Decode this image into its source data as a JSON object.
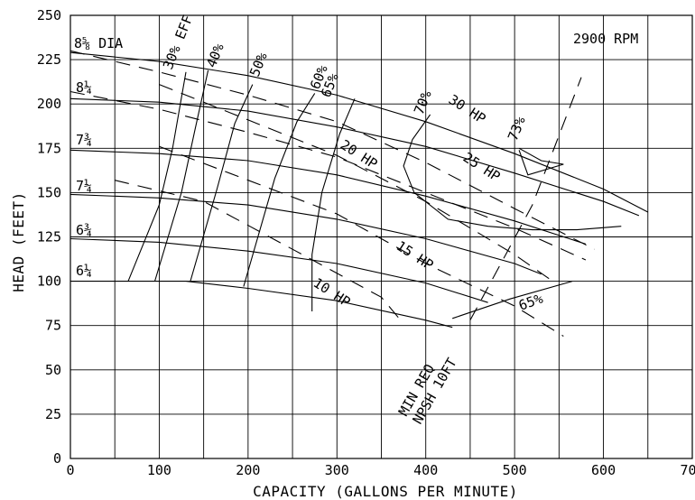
{
  "chart_data": {
    "type": "line",
    "title": "",
    "xlabel": "CAPACITY (GALLONS PER MINUTE)",
    "ylabel": "HEAD (FEET)",
    "xlim": [
      0,
      700
    ],
    "ylim": [
      0,
      250
    ],
    "x_ticks": [
      "0",
      "100",
      "200",
      "300",
      "400",
      "500",
      "600",
      "700"
    ],
    "y_ticks": [
      "0",
      "25",
      "50",
      "75",
      "100",
      "125",
      "150",
      "175",
      "200",
      "225",
      "250"
    ],
    "grid": true,
    "speed_label": "2900 RPM",
    "head_curves": [
      {
        "label": "8⅝ DIA",
        "points": [
          [
            0,
            229
          ],
          [
            100,
            224
          ],
          [
            200,
            216
          ],
          [
            300,
            205
          ],
          [
            400,
            190
          ],
          [
            500,
            172
          ],
          [
            600,
            152
          ],
          [
            650,
            139
          ]
        ]
      },
      {
        "label": "8¼",
        "points": [
          [
            0,
            203
          ],
          [
            100,
            201
          ],
          [
            200,
            196
          ],
          [
            300,
            187
          ],
          [
            400,
            176
          ],
          [
            500,
            161
          ],
          [
            600,
            145
          ],
          [
            640,
            137
          ]
        ]
      },
      {
        "label": "7¾",
        "points": [
          [
            0,
            174
          ],
          [
            100,
            172
          ],
          [
            200,
            168
          ],
          [
            300,
            160
          ],
          [
            400,
            148
          ],
          [
            500,
            134
          ],
          [
            580,
            121
          ]
        ]
      },
      {
        "label": "7¼",
        "points": [
          [
            0,
            149
          ],
          [
            100,
            147
          ],
          [
            200,
            143
          ],
          [
            300,
            135
          ],
          [
            400,
            124
          ],
          [
            500,
            110
          ],
          [
            530,
            104
          ]
        ]
      },
      {
        "label": "6¾",
        "points": [
          [
            0,
            124
          ],
          [
            100,
            122
          ],
          [
            200,
            117
          ],
          [
            300,
            110
          ],
          [
            400,
            99
          ],
          [
            470,
            88
          ]
        ]
      },
      {
        "label": "6¼",
        "points": [
          [
            0,
            100
          ],
          [
            130,
            100
          ],
          [
            200,
            96
          ],
          [
            300,
            89
          ],
          [
            400,
            78
          ],
          [
            430,
            74
          ]
        ]
      }
    ],
    "efficiency_curves": [
      {
        "label": "30% EFF",
        "points": [
          [
            65,
            100
          ],
          [
            100,
            143
          ],
          [
            115,
            175
          ],
          [
            130,
            218
          ]
        ]
      },
      {
        "label": "40%",
        "points": [
          [
            95,
            100
          ],
          [
            125,
            150
          ],
          [
            140,
            185
          ],
          [
            155,
            219
          ]
        ]
      },
      {
        "label": "50%",
        "points": [
          [
            135,
            100
          ],
          [
            165,
            152
          ],
          [
            185,
            189
          ],
          [
            205,
            211
          ]
        ]
      },
      {
        "label": "60%",
        "points": [
          [
            195,
            97
          ],
          [
            230,
            158
          ],
          [
            255,
            190
          ],
          [
            275,
            206
          ]
        ]
      },
      {
        "label": "65%",
        "points": [
          [
            272,
            83
          ],
          [
            272,
            115
          ],
          [
            283,
            150
          ],
          [
            303,
            183
          ],
          [
            320,
            203
          ]
        ]
      },
      {
        "label": "65%",
        "points": [
          [
            430,
            79
          ],
          [
            495,
            90
          ],
          [
            565,
            100
          ]
        ]
      },
      {
        "label": "70%",
        "points": [
          [
            405,
            194
          ],
          [
            385,
            180
          ],
          [
            375,
            165
          ],
          [
            387,
            150
          ],
          [
            425,
            135
          ],
          [
            470,
            131
          ],
          [
            520,
            129
          ],
          [
            570,
            129
          ],
          [
            620,
            131
          ]
        ]
      },
      {
        "label": "73%",
        "points": [
          [
            505,
            175
          ],
          [
            530,
            168
          ],
          [
            555,
            166
          ],
          [
            515,
            160
          ],
          [
            505,
            174
          ]
        ]
      }
    ],
    "power_lines": [
      {
        "label": "10 HP",
        "points": [
          [
            50,
            157
          ],
          [
            150,
            145
          ],
          [
            250,
            118
          ],
          [
            350,
            91
          ],
          [
            375,
            76
          ]
        ]
      },
      {
        "label": "15 HP",
        "points": [
          [
            100,
            176
          ],
          [
            200,
            157
          ],
          [
            300,
            138
          ],
          [
            400,
            110
          ],
          [
            500,
            86
          ],
          [
            555,
            69
          ]
        ]
      },
      {
        "label": "20 HP",
        "points": [
          [
            100,
            211
          ],
          [
            200,
            191
          ],
          [
            300,
            171
          ],
          [
            400,
            145
          ],
          [
            500,
            115
          ],
          [
            540,
            101
          ]
        ]
      },
      {
        "label": "25 HP",
        "points": [
          [
            0,
            207
          ],
          [
            100,
            197
          ],
          [
            200,
            184
          ],
          [
            300,
            170
          ],
          [
            400,
            150
          ],
          [
            500,
            130
          ],
          [
            580,
            112
          ]
        ]
      },
      {
        "label": "30 HP",
        "points": [
          [
            0,
            230
          ],
          [
            100,
            218
          ],
          [
            200,
            205
          ],
          [
            300,
            190
          ],
          [
            400,
            167
          ],
          [
            500,
            141
          ],
          [
            590,
            118
          ]
        ]
      }
    ],
    "npsh_line": {
      "label": "MIN REQ NPSH 10FT",
      "points": [
        [
          450,
          78
        ],
        [
          490,
          115
        ],
        [
          520,
          143
        ],
        [
          575,
          215
        ]
      ]
    }
  }
}
